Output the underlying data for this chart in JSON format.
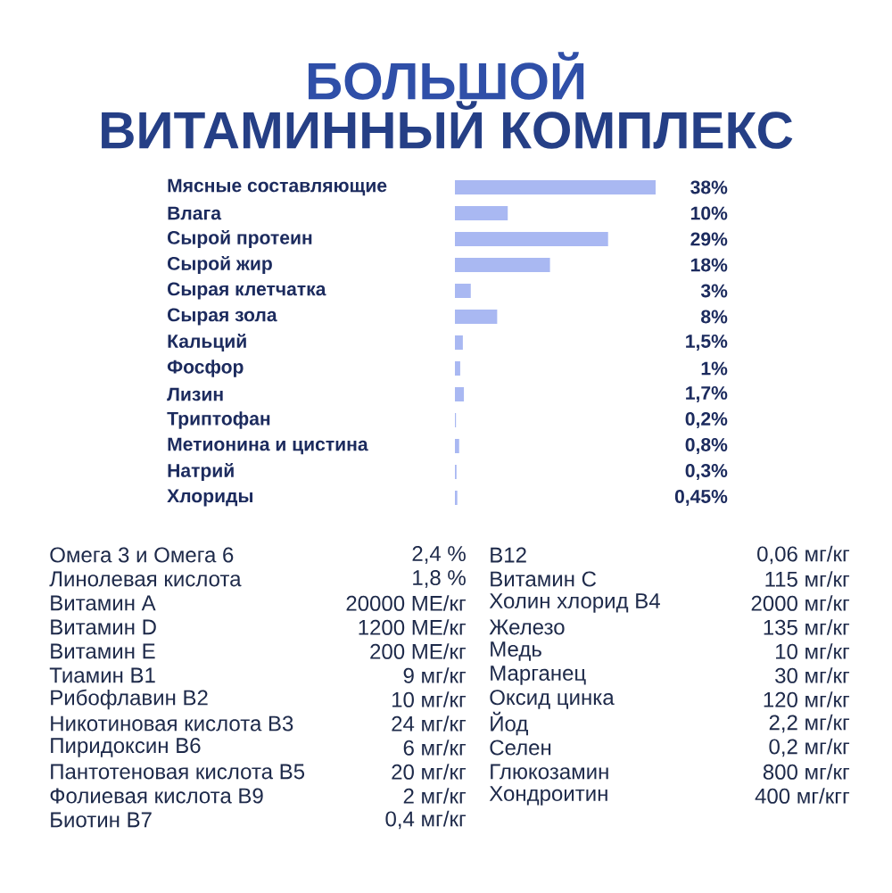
{
  "chart_data": [
    {
      "type": "bar",
      "title": "БОЛЬШОЙ",
      "subtitle": "ВИТАМИННЫЙ КОМПЛЕКС",
      "orientation": "horizontal",
      "tick_labels": "y",
      "color": "#a9b8f2",
      "categories": [
        "Мясные составляющие",
        "Влага",
        "Сырой протеин",
        "Сырой жир",
        "Сырая клетчатка",
        "Сырая зола",
        "Кальций",
        "Фосфор",
        "Лизин",
        "Триптофан",
        "Метионина и цистина",
        "Натрий",
        "Хлориды"
      ],
      "values": [
        38,
        10,
        29,
        18,
        3,
        8,
        1.5,
        1,
        1.7,
        0.2,
        0.8,
        0.3,
        0.45
      ],
      "value_labels": [
        "38%",
        "10%",
        "29%",
        "18%",
        "3%",
        "8%",
        "1,5%",
        "1%",
        "1,7%",
        "0,2%",
        "0,8%",
        "0,3%",
        "0,45%"
      ]
    },
    {
      "type": "other",
      "annotations": [
        "Омега 3 и Омега 6",
        "2,4 %",
        "Линолевая кислота",
        "1,8 %",
        "Витамин А",
        "20000 МЕ/кг",
        "Витамин D",
        "1200 МЕ/кг",
        "Витамин Е",
        "200 МЕ/кг",
        "Тиамин В1",
        "9 мг/кг",
        "Рибофлавин В2",
        "10 мг/кг",
        "Никотиновая кислота В3",
        "24 мг/кг",
        "Пиридоксин В6",
        "6 мг/кг",
        "Пантотеновая кислота В5",
        "20 мг/кг",
        "Фолиевая кислота В9",
        "2 мг/кг",
        "Биотин В7",
        "0,4 мг/кг",
        "В12",
        "0,06 мг/кг",
        "Витамин С",
        "115 мг/кг",
        "Холин хлорид В4",
        "2000 мг/кг",
        "Железо",
        "135 мг/кг",
        "Медь",
        "10 мг/кг",
        "Марганец",
        "30 мг/кг",
        "Оксид цинка",
        "120 мг/кг",
        "Йод",
        "2,2 мг/кг",
        "Селен",
        "0,2 мг/кг",
        "Глюкозамин",
        "800 мг/кг",
        "Хондроитин",
        "400 мг/кгг"
      ]
    }
  ]
}
